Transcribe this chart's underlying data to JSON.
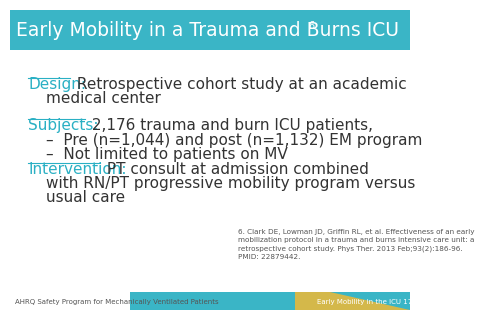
{
  "title": "Early Mobility in a Trauma and Burns ICU",
  "title_superscript": "6",
  "header_bg": "#3ab5c6",
  "header_text_color": "#ffffff",
  "body_bg": "#ffffff",
  "accent_color": "#2ab0c4",
  "body_text_color": "#333333",
  "footer_bg_teal": "#3ab5c6",
  "footer_bg_gold": "#d4b84a",
  "footer_left_text": "AHRQ Safety Program for Mechanically Ventilated Patients",
  "footer_right_text": "Early Mobility in the ICU 17",
  "reference_text": "6. Clark DE, Lowman JD, Griffin RL, et al. Effectiveness of an early\nmobilization protocol in a trauma and burns intensive care unit: a\nretrospective cohort study. Phys Ther. 2013 Feb;93(2):186-96.\nPMID: 22879442.",
  "design_label": "Design:",
  "subjects_label": "Subjects:",
  "subjects_body": " 2,176 trauma and burn ICU patients,",
  "bullet1": "Pre (n=1,044) and post (n=1,132) EM program",
  "bullet2": "Not limited to patients on MV",
  "intervention_label": "Intervention:",
  "label_font_size": 11,
  "body_font_size": 11,
  "small_font_size": 5.2,
  "footer_font_size": 5,
  "title_font_size": 13.5
}
